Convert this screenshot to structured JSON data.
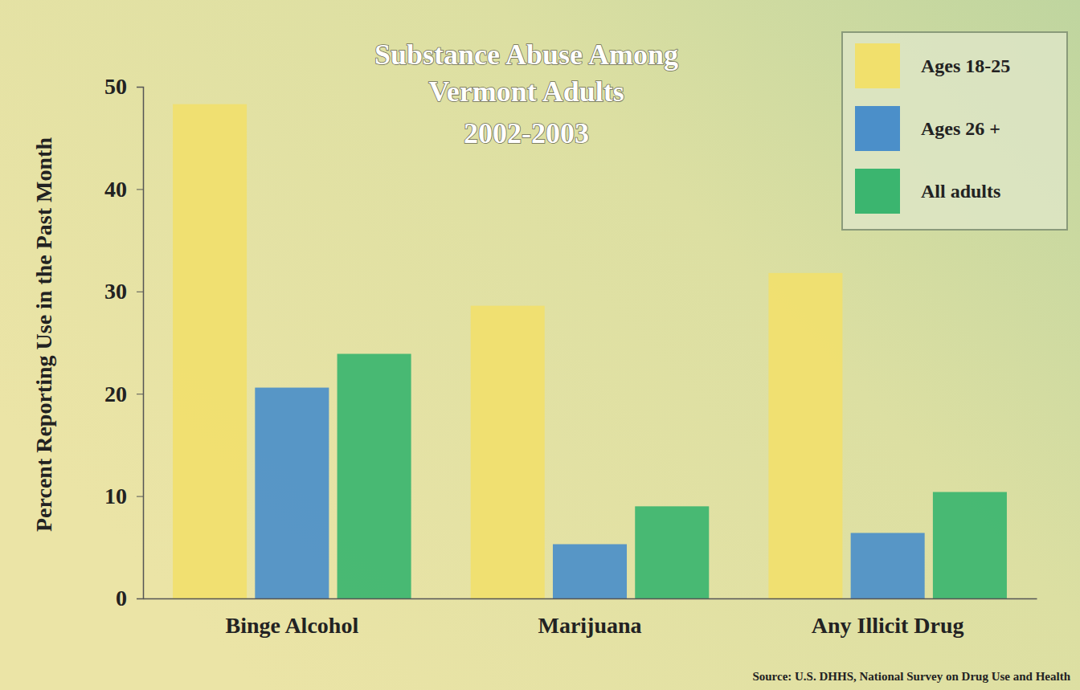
{
  "chart_data": {
    "type": "bar",
    "title": "Substance Abuse Among Vermont Adults",
    "subtitle": "2002-2003",
    "y_label": "Percent Reporting Use in the Past Month",
    "annotations": [
      "Source: U.S. DHHS, National Survey on Drug Use and Health"
    ],
    "categories": [
      "Binge Alcohol",
      "Marijuana",
      "Any Illicit Drug"
    ],
    "series": [
      {
        "name": "Ages 18-25",
        "color": "#f1e06c",
        "values": [
          48.3,
          28.6,
          31.8
        ]
      },
      {
        "name": "Ages 26 +",
        "color": "#4b8fc9",
        "values": [
          20.6,
          5.3,
          6.4
        ]
      },
      {
        "name": "All adults",
        "color": "#3bb56f",
        "values": [
          23.9,
          9.0,
          10.4
        ]
      }
    ],
    "ylim": [
      0,
      50
    ],
    "yticks": [
      0,
      10,
      20,
      30,
      40,
      50
    ],
    "grid": false,
    "legend": "top-right"
  }
}
